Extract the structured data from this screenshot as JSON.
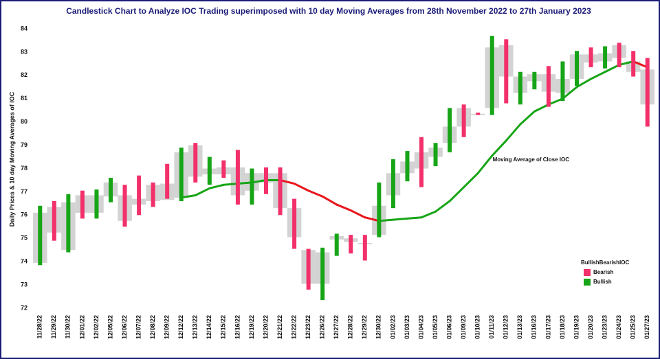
{
  "chart_data": {
    "type": "candlestick",
    "title": "Candlestick Chart to Analyze IOC Trading superimposed with 10 day Moving Averages  from 28th November 2022 to 27th January 2023",
    "y_label": "Daily Prices & 10 day Moving Averages of IOC",
    "categories": [
      "11/28/22",
      "11/29/22",
      "11/30/22",
      "12/01/22",
      "12/02/22",
      "12/05/22",
      "12/06/22",
      "12/07/22",
      "12/08/22",
      "12/09/22",
      "12/12/22",
      "12/13/22",
      "12/14/22",
      "12/15/22",
      "12/16/22",
      "12/19/22",
      "12/20/22",
      "12/21/22",
      "12/22/22",
      "12/23/22",
      "12/26/22",
      "12/27/22",
      "12/28/22",
      "12/29/22",
      "12/30/22",
      "01/02/23",
      "01/03/23",
      "01/04/23",
      "01/05/23",
      "01/06/23",
      "01/09/23",
      "01/10/23",
      "01/11/23",
      "01/12/23",
      "01/13/23",
      "01/16/23",
      "01/17/23",
      "01/18/23",
      "01/19/23",
      "01/20/23",
      "01/23/23",
      "01/24/23",
      "01/25/23",
      "01/27/23"
    ],
    "open": [
      73.95,
      76.35,
      74.5,
      76.85,
      76.1,
      76.8,
      76.85,
      76.7,
      77.3,
      77.35,
      76.75,
      79.0,
      77.75,
      78.05,
      78.05,
      77.05,
      77.8,
      77.8,
      76.3,
      74.5,
      73.05,
      74.95,
      75.0,
      74.8,
      75.15,
      76.85,
      77.8,
      78.7,
      78.5,
      79.1,
      80.6,
      80.35,
      80.6,
      83.3,
      81.25,
      81.75,
      82.05,
      81.25,
      81.85,
      82.9,
      82.6,
      83.3,
      82.6,
      82.25
    ],
    "high": [
      76.4,
      76.6,
      76.9,
      77.05,
      77.1,
      77.6,
      77.3,
      77.7,
      77.4,
      78.2,
      78.9,
      79.1,
      78.5,
      78.35,
      78.8,
      78.0,
      78.05,
      78.05,
      76.7,
      74.55,
      74.6,
      75.2,
      75.15,
      75.15,
      77.4,
      78.4,
      78.75,
      79.35,
      79.1,
      80.6,
      80.75,
      80.4,
      83.7,
      83.55,
      82.15,
      82.15,
      82.4,
      82.6,
      83.05,
      83.2,
      83.25,
      83.4,
      83.05,
      82.75
    ],
    "low": [
      73.85,
      74.9,
      74.4,
      75.85,
      75.85,
      76.55,
      75.5,
      76.0,
      76.35,
      76.7,
      76.6,
      77.4,
      77.3,
      77.6,
      76.45,
      76.45,
      76.9,
      76.0,
      74.55,
      72.8,
      72.35,
      74.25,
      74.35,
      74.05,
      75.05,
      76.3,
      77.45,
      77.2,
      78.1,
      78.7,
      79.35,
      80.3,
      80.3,
      80.8,
      80.75,
      81.4,
      80.65,
      80.9,
      81.55,
      82.35,
      82.3,
      82.35,
      81.95,
      79.8
    ],
    "close": [
      76.1,
      75.25,
      76.55,
      76.1,
      76.85,
      77.4,
      75.75,
      76.45,
      76.6,
      76.65,
      78.7,
      77.65,
      78.0,
      77.75,
      76.85,
      77.8,
      77.4,
      76.3,
      75.05,
      73.05,
      74.4,
      75.1,
      74.85,
      74.75,
      76.4,
      77.8,
      78.3,
      78.0,
      78.9,
      79.8,
      79.8,
      80.3,
      83.2,
      81.95,
      81.95,
      82.05,
      81.3,
      81.85,
      82.9,
      82.55,
      82.95,
      82.75,
      82.15,
      80.75
    ],
    "body_color": "#d3d3d3",
    "moving_average": {
      "label": "Moving Average of Close IOC",
      "up_color": "#17a517",
      "down_color": "#e8161c",
      "values": [
        null,
        null,
        null,
        null,
        null,
        null,
        null,
        null,
        null,
        null,
        76.75,
        76.85,
        77.15,
        77.3,
        77.35,
        77.4,
        77.5,
        77.5,
        77.35,
        77.05,
        76.8,
        76.45,
        76.2,
        75.9,
        75.75,
        75.8,
        75.85,
        75.9,
        76.15,
        76.6,
        77.2,
        77.8,
        78.55,
        79.2,
        79.9,
        80.45,
        80.75,
        81.0,
        81.5,
        81.85,
        82.15,
        82.45,
        82.6,
        82.35
      ]
    },
    "legend": {
      "title": "BullishBearishIOC",
      "items": [
        {
          "name": "Bearish",
          "color": "#f2306a"
        },
        {
          "name": "Bullish",
          "color": "#17a517"
        }
      ]
    },
    "ylim": [
      72,
      84
    ],
    "yticks": [
      72,
      73,
      74,
      75,
      76,
      77,
      78,
      79,
      80,
      81,
      82,
      83,
      84
    ]
  }
}
